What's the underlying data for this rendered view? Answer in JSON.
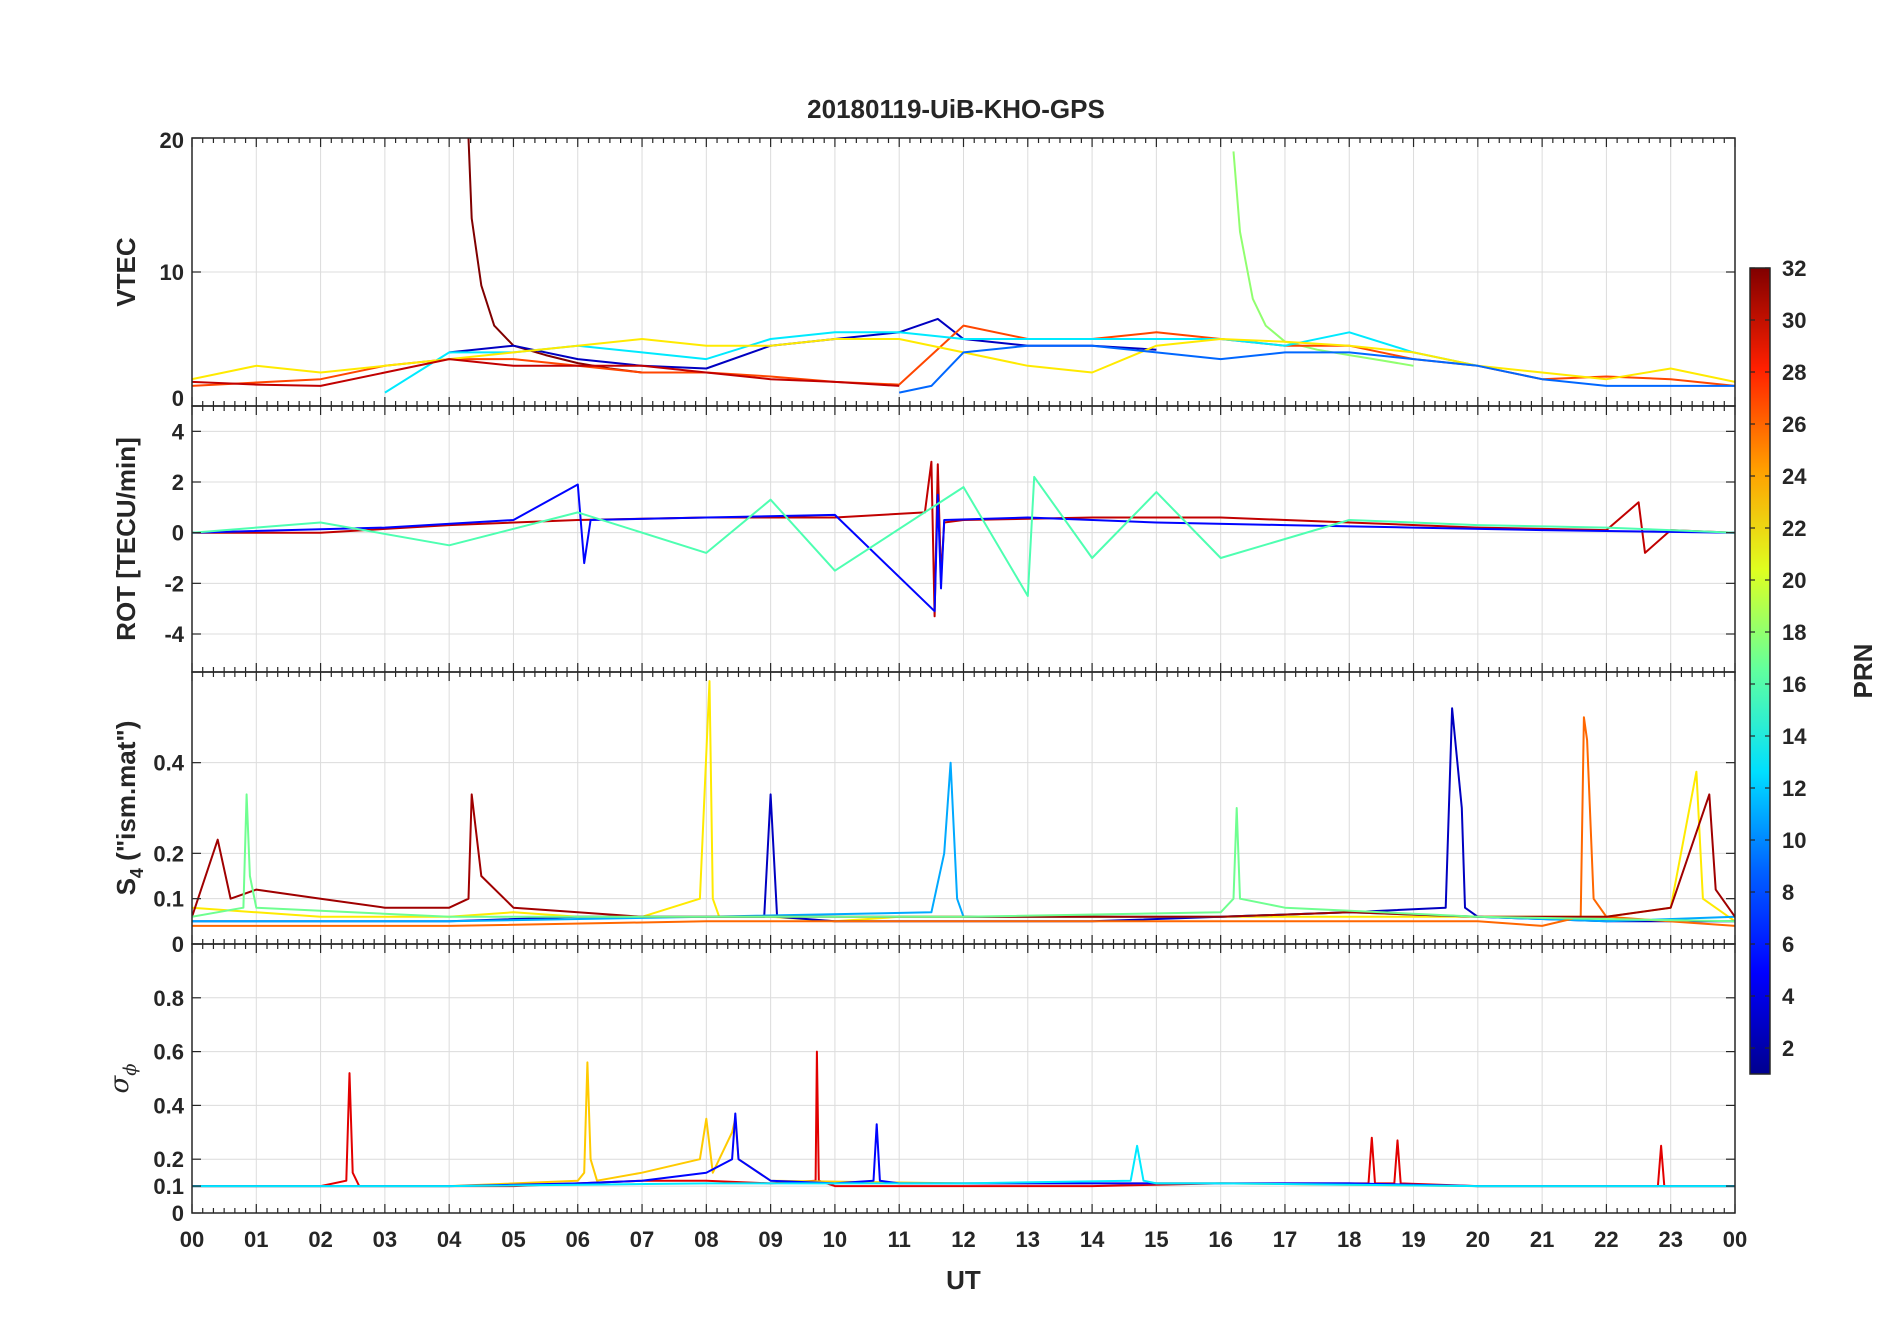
{
  "chart_data": {
    "type": "line",
    "title": "20180119-UiB-KHO-GPS",
    "x_axis": {
      "label": "UT",
      "tick_labels": [
        "00",
        "01",
        "02",
        "03",
        "04",
        "05",
        "06",
        "07",
        "08",
        "09",
        "10",
        "11",
        "12",
        "13",
        "14",
        "15",
        "16",
        "17",
        "18",
        "19",
        "20",
        "21",
        "22",
        "23",
        "00"
      ],
      "range_hours": [
        0,
        24
      ]
    },
    "colorbar": {
      "label": "PRN",
      "range": [
        1,
        32
      ],
      "tick_labels": [
        "2",
        "4",
        "6",
        "8",
        "10",
        "12",
        "14",
        "16",
        "18",
        "20",
        "22",
        "24",
        "26",
        "28",
        "30",
        "32"
      ],
      "tick_values": [
        2,
        4,
        6,
        8,
        10,
        12,
        14,
        16,
        18,
        20,
        22,
        24,
        26,
        28,
        30,
        32
      ],
      "colormap": "jet"
    },
    "grid": true,
    "panels": [
      {
        "ylabel": "VTEC",
        "ylim": [
          0,
          20
        ],
        "ytick_labels": [
          "0",
          "10",
          "20"
        ],
        "ytick_values": [
          0,
          10,
          20
        ],
        "series": [
          {
            "prn": 32,
            "x": [
              4.3,
              4.35,
              4.5,
              4.7,
              5.0,
              5.5,
              6.0,
              6.5,
              7.0
            ],
            "y": [
              20,
              14,
              9,
              6,
              4.5,
              3.8,
              3.2,
              2.8,
              2.5
            ]
          },
          {
            "prn": 17,
            "x": [
              16.2,
              16.3,
              16.5,
              16.7,
              17.0,
              17.5,
              18.0,
              18.5,
              19.0
            ],
            "y": [
              19,
              13,
              8,
              6,
              4.8,
              4.2,
              3.8,
              3.4,
              3.0
            ]
          },
          {
            "prn": 3,
            "x": [
              4.0,
              5.0,
              6.0,
              7.0,
              8.0,
              9.0,
              10.0,
              11.0,
              11.6,
              12.0,
              13.0,
              14.0,
              15.0
            ],
            "y": [
              4,
              4.5,
              3.5,
              3.0,
              2.8,
              4.5,
              5.0,
              5.5,
              6.5,
              5,
              4.5,
              4.5,
              4.2
            ]
          },
          {
            "prn": 26,
            "x": [
              0,
              2,
              3,
              4,
              5,
              6,
              7,
              8,
              9,
              10,
              11,
              12,
              13,
              14,
              15,
              16,
              17,
              18,
              19,
              20,
              21,
              22,
              23,
              24
            ],
            "y": [
              1.5,
              2,
              3,
              3.5,
              3.5,
              3,
              2.5,
              2.5,
              2.2,
              1.8,
              1.6,
              6,
              5,
              5,
              5.5,
              5,
              4.5,
              4.5,
              3.5,
              3,
              2,
              2.2,
              2,
              1.5
            ]
          },
          {
            "prn": 12,
            "x": [
              3,
              4,
              5,
              6,
              7,
              8,
              9,
              10,
              11,
              12,
              13,
              14,
              15,
              16,
              17,
              18,
              19,
              20
            ],
            "y": [
              1,
              4,
              4,
              4.5,
              4,
              3.5,
              5,
              5.5,
              5.5,
              5,
              5,
              5,
              5,
              5,
              4.5,
              5.5,
              4,
              3
            ]
          },
          {
            "prn": 21,
            "x": [
              0,
              1,
              2,
              3,
              4,
              5,
              6,
              7,
              8,
              9,
              10,
              11,
              12,
              13,
              14,
              15,
              16,
              17,
              18,
              19,
              20,
              21,
              22,
              23,
              24
            ],
            "y": [
              2,
              3,
              2.5,
              3,
              3.5,
              4,
              4.5,
              5,
              4.5,
              4.5,
              5,
              5,
              4,
              3,
              2.5,
              4.5,
              5,
              4.8,
              4.5,
              4,
              3,
              2.5,
              2,
              2.8,
              1.8
            ]
          },
          {
            "prn": 8,
            "x": [
              11,
              11.5,
              12,
              13,
              14,
              15,
              16,
              17,
              18,
              19,
              20,
              21,
              22,
              23,
              24
            ],
            "y": [
              1,
              1.5,
              4,
              4.5,
              4.5,
              4,
              3.5,
              4,
              4,
              3.5,
              3,
              2,
              1.5,
              1.5,
              1.5
            ]
          },
          {
            "prn": 30,
            "x": [
              0,
              1,
              2,
              3,
              4,
              5,
              6,
              7,
              8,
              9,
              10,
              11
            ],
            "y": [
              1.8,
              1.6,
              1.5,
              2.5,
              3.5,
              3,
              3,
              3,
              2.5,
              2,
              1.8,
              1.5
            ]
          }
        ]
      },
      {
        "ylabel": "ROT [TECU/min]",
        "ylim": [
          -5.5,
          5
        ],
        "ytick_labels": [
          "-4",
          "-2",
          "0",
          "2",
          "4"
        ],
        "ytick_values": [
          -4,
          -2,
          0,
          2,
          4
        ],
        "series": [
          {
            "prn": 30,
            "x": [
              0,
              2,
              4,
              6,
              8,
              10,
              11.4,
              11.5,
              11.55,
              11.6,
              11.65,
              11.7,
              12,
              14,
              16,
              18,
              20,
              22,
              22.5,
              22.6,
              23,
              24
            ],
            "y": [
              0,
              0,
              0.3,
              0.5,
              0.6,
              0.6,
              0.8,
              2.8,
              -3.3,
              2.7,
              -1.8,
              0.4,
              0.5,
              0.6,
              0.6,
              0.4,
              0.2,
              0.1,
              1.2,
              -0.8,
              0.1,
              0
            ]
          },
          {
            "prn": 5,
            "x": [
              0,
              3,
              5,
              6,
              6.1,
              6.2,
              8,
              10,
              11.55,
              11.6,
              11.65,
              11.7,
              13,
              15,
              17,
              19,
              21,
              24
            ],
            "y": [
              0,
              0.2,
              0.5,
              1.9,
              -1.2,
              0.5,
              0.6,
              0.7,
              -3.1,
              1.5,
              -2.2,
              0.5,
              0.6,
              0.4,
              0.3,
              0.2,
              0.1,
              0
            ]
          },
          {
            "prn": 15,
            "x": [
              0,
              2,
              4,
              6,
              8,
              9,
              10,
              12,
              13,
              13.1,
              14,
              15,
              16,
              18,
              20,
              22,
              24
            ],
            "y": [
              0,
              0.4,
              -0.5,
              0.8,
              -0.8,
              1.3,
              -1.5,
              1.8,
              -2.5,
              2.2,
              -1,
              1.6,
              -1,
              0.5,
              0.3,
              0.2,
              0
            ]
          }
        ]
      },
      {
        "ylabel": "S4 (\"ism.mat\")",
        "ylabel_main": "S",
        "ylabel_sub": "4",
        "ylabel_rest": " (\"ism.mat\")",
        "ylim": [
          0,
          0.6
        ],
        "ytick_labels": [
          "0",
          "0.1",
          "0.2",
          "0.4"
        ],
        "ytick_values": [
          0,
          0.1,
          0.2,
          0.4
        ],
        "series": [
          {
            "prn": 21,
            "x": [
              0,
              1,
              2,
              3,
              4,
              5,
              6,
              7,
              7.9,
              8.05,
              8.1,
              8.2,
              9,
              10,
              11,
              12,
              13,
              14,
              15,
              16,
              17,
              18,
              19,
              20,
              21,
              22,
              23,
              23.4,
              23.5,
              24
            ],
            "y": [
              0.08,
              0.07,
              0.06,
              0.06,
              0.06,
              0.07,
              0.06,
              0.06,
              0.1,
              0.58,
              0.1,
              0.06,
              0.06,
              0.05,
              0.06,
              0.06,
              0.06,
              0.06,
              0.06,
              0.06,
              0.06,
              0.06,
              0.06,
              0.06,
              0.06,
              0.06,
              0.08,
              0.38,
              0.1,
              0.05
            ]
          },
          {
            "prn": 3,
            "x": [
              0,
              2,
              4,
              6,
              8,
              8.9,
              9.0,
              9.1,
              10,
              12,
              14,
              16,
              18,
              19.5,
              19.6,
              19.75,
              19.8,
              20,
              22,
              24
            ],
            "y": [
              0.05,
              0.05,
              0.05,
              0.06,
              0.06,
              0.06,
              0.33,
              0.06,
              0.05,
              0.05,
              0.05,
              0.06,
              0.07,
              0.08,
              0.52,
              0.3,
              0.08,
              0.06,
              0.05,
              0.05
            ]
          },
          {
            "prn": 10,
            "x": [
              0,
              4,
              8,
              11.5,
              11.7,
              11.8,
              11.9,
              12,
              14,
              16,
              18,
              20,
              22,
              24
            ],
            "y": [
              0.05,
              0.05,
              0.06,
              0.07,
              0.2,
              0.4,
              0.1,
              0.06,
              0.06,
              0.06,
              0.07,
              0.06,
              0.05,
              0.06
            ]
          },
          {
            "prn": 25,
            "x": [
              0,
              4,
              8,
              12,
              16,
              20,
              21,
              21.6,
              21.65,
              21.7,
              21.8,
              22,
              24
            ],
            "y": [
              0.04,
              0.04,
              0.05,
              0.05,
              0.05,
              0.05,
              0.04,
              0.06,
              0.5,
              0.45,
              0.1,
              0.06,
              0.04
            ]
          },
          {
            "prn": 31,
            "x": [
              0,
              0.4,
              0.6,
              1,
              2,
              3,
              4,
              4.3,
              4.35,
              4.5,
              5,
              6,
              7,
              8,
              10,
              12,
              14,
              16,
              18,
              20,
              22,
              23,
              23.6,
              23.7,
              24
            ],
            "y": [
              0.06,
              0.23,
              0.1,
              0.12,
              0.1,
              0.08,
              0.08,
              0.1,
              0.33,
              0.15,
              0.08,
              0.07,
              0.06,
              0.06,
              0.06,
              0.06,
              0.06,
              0.06,
              0.07,
              0.06,
              0.06,
              0.08,
              0.33,
              0.12,
              0.06
            ]
          },
          {
            "prn": 16,
            "x": [
              0,
              0.8,
              0.85,
              0.9,
              1,
              4,
              5,
              6,
              8,
              12,
              16,
              16.2,
              16.25,
              16.3,
              17,
              20,
              24
            ],
            "y": [
              0.06,
              0.08,
              0.33,
              0.15,
              0.08,
              0.06,
              0.06,
              0.06,
              0.06,
              0.06,
              0.07,
              0.1,
              0.3,
              0.1,
              0.08,
              0.06,
              0.05
            ]
          }
        ]
      },
      {
        "ylabel": "σ ϕ",
        "ylabel_main": "σ",
        "ylabel_sub": "ϕ",
        "ylim": [
          0,
          1
        ],
        "ytick_labels": [
          "0",
          "0.1",
          "0.2",
          "0.4",
          "0.6",
          "0.8"
        ],
        "ytick_values": [
          0,
          0.1,
          0.2,
          0.4,
          0.6,
          0.8
        ],
        "series": [
          {
            "prn": 29,
            "x": [
              0,
              1,
              2,
              2.4,
              2.45,
              2.5,
              2.6,
              3,
              4,
              5,
              6,
              7,
              8,
              9,
              9.7,
              9.72,
              9.75,
              10,
              12,
              14,
              16,
              18,
              18.3,
              18.35,
              18.4,
              18.7,
              18.75,
              18.8,
              20,
              22,
              22.8,
              22.85,
              22.9,
              24
            ],
            "y": [
              0.1,
              0.1,
              0.1,
              0.12,
              0.52,
              0.15,
              0.1,
              0.1,
              0.1,
              0.1,
              0.11,
              0.12,
              0.12,
              0.11,
              0.12,
              0.6,
              0.12,
              0.1,
              0.1,
              0.1,
              0.11,
              0.11,
              0.11,
              0.28,
              0.11,
              0.11,
              0.27,
              0.11,
              0.1,
              0.1,
              0.1,
              0.25,
              0.1,
              0.1
            ]
          },
          {
            "prn": 22,
            "x": [
              0,
              4,
              6,
              6.1,
              6.15,
              6.2,
              6.3,
              7,
              7.9,
              8.0,
              8.1,
              8.4,
              8.45,
              8.5,
              9,
              12,
              16,
              20,
              24
            ],
            "y": [
              0.1,
              0.1,
              0.12,
              0.15,
              0.56,
              0.2,
              0.12,
              0.15,
              0.2,
              0.35,
              0.15,
              0.3,
              0.35,
              0.2,
              0.12,
              0.11,
              0.11,
              0.1,
              0.1
            ]
          },
          {
            "prn": 5,
            "x": [
              0,
              4,
              6,
              7,
              8,
              8.4,
              8.45,
              8.5,
              9,
              10,
              10.6,
              10.65,
              10.7,
              11,
              14,
              16,
              18,
              20,
              24
            ],
            "y": [
              0.1,
              0.1,
              0.11,
              0.12,
              0.15,
              0.2,
              0.37,
              0.2,
              0.12,
              0.11,
              0.12,
              0.33,
              0.12,
              0.11,
              0.11,
              0.11,
              0.11,
              0.1,
              0.1
            ]
          },
          {
            "prn": 12,
            "x": [
              0,
              4,
              8,
              12,
              14.6,
              14.7,
              14.8,
              15,
              16,
              20,
              24
            ],
            "y": [
              0.1,
              0.1,
              0.11,
              0.11,
              0.12,
              0.25,
              0.12,
              0.11,
              0.11,
              0.1,
              0.1
            ]
          }
        ]
      }
    ]
  }
}
